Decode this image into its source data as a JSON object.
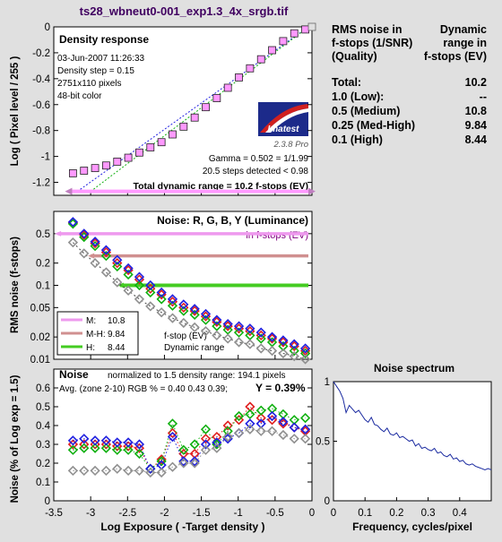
{
  "file_title": "ts28_wbneut0-001_exp1.3_4x_srgb.tif",
  "colors": {
    "background": "#e0e0e0",
    "plot_bg": "#ffffff",
    "title": "#400060",
    "density_marker": "#ff99ff",
    "red": "#e02020",
    "green": "#10b010",
    "blue": "#2020e0",
    "gray": "#909090",
    "range_m": "#ee99ee",
    "range_mh": "#d09090",
    "range_h": "#44cc22"
  },
  "summary": {
    "header_left": [
      "RMS noise in",
      "f-stops (1/SNR)",
      "(Quality)"
    ],
    "header_right": [
      "Dynamic",
      "range in",
      "f-stops (EV)"
    ],
    "rows": [
      {
        "label": "Total:",
        "value": "10.2"
      },
      {
        "label": "1.0   (Low):",
        "value": "--"
      },
      {
        "label": "0.5   (Medium)",
        "value": "10.8"
      },
      {
        "label": "0.25 (Med-High)",
        "value": "9.84"
      },
      {
        "label": "0.1   (High)",
        "value": "8.44"
      }
    ]
  },
  "chart_data": [
    {
      "type": "scatter",
      "title": "Density response",
      "ylabel": "Log ( Pixel level / 255 )",
      "xlim": [
        -3.5,
        0
      ],
      "ylim": [
        -1.3,
        0
      ],
      "yticks": [
        0,
        -0.2,
        -0.4,
        -0.6,
        -0.8,
        -1,
        -1.2
      ],
      "info": [
        "03-Jun-2007 11:26:33",
        "Density step = 0.15",
        "2751x110 pixels",
        "48-bit color"
      ],
      "logo": "Imatest",
      "version": "2.3.8  Pro",
      "gamma": "Gamma = 0.502 = 1/1.99",
      "steps": "20.5 steps detected < 0.98",
      "total_range": "Total dynamic range = 10.2 f-stops (EV)",
      "x": [
        -3.24,
        -3.09,
        -2.94,
        -2.79,
        -2.64,
        -2.49,
        -2.34,
        -2.19,
        -2.04,
        -1.89,
        -1.74,
        -1.59,
        -1.44,
        -1.29,
        -1.14,
        -0.99,
        -0.84,
        -0.69,
        -0.54,
        -0.39,
        -0.24,
        -0.09,
        0.0
      ],
      "y": [
        -1.13,
        -1.11,
        -1.09,
        -1.07,
        -1.04,
        -1.01,
        -0.97,
        -0.93,
        -0.89,
        -0.83,
        -0.77,
        -0.7,
        -0.62,
        -0.55,
        -0.47,
        -0.39,
        -0.32,
        -0.25,
        -0.18,
        -0.11,
        -0.05,
        -0.02,
        0.0
      ],
      "range_line": [
        -3.3,
        0
      ]
    },
    {
      "type": "scatter",
      "title": "Noise: R, G, B, Y (Luminance)",
      "subtitle": "in f-stops (EV)",
      "ylabel": "RMS noise (f-stops)",
      "yscale": "log",
      "ylim": [
        0.01,
        1
      ],
      "yticks": [
        "0.5",
        "0.2",
        "0.1",
        "0.05",
        "0.02",
        "0.01"
      ],
      "yticks_values": [
        0.5,
        0.2,
        0.1,
        0.05,
        0.02,
        0.01
      ],
      "xlim": [
        -3.5,
        0
      ],
      "ranges": [
        {
          "name": "M:",
          "value": "10.8",
          "level": 0.5,
          "x_start": -3.45
        },
        {
          "name": "M-H:",
          "value": "9.84",
          "level": 0.25,
          "x_start": -3.0
        },
        {
          "name": "H:",
          "value": "8.44",
          "level": 0.1,
          "x_start": -2.6
        }
      ],
      "annotation": [
        "f-stop (EV)",
        "Dynamic range"
      ],
      "x": [
        -3.24,
        -3.09,
        -2.94,
        -2.79,
        -2.64,
        -2.49,
        -2.34,
        -2.19,
        -2.04,
        -1.89,
        -1.74,
        -1.59,
        -1.44,
        -1.29,
        -1.14,
        -0.99,
        -0.84,
        -0.69,
        -0.54,
        -0.39,
        -0.24,
        -0.09
      ],
      "series": [
        {
          "name": "R",
          "values": [
            0.7,
            0.48,
            0.37,
            0.28,
            0.2,
            0.16,
            0.12,
            0.09,
            0.075,
            0.06,
            0.05,
            0.045,
            0.038,
            0.032,
            0.028,
            0.026,
            0.024,
            0.021,
            0.019,
            0.017,
            0.015,
            0.013
          ]
        },
        {
          "name": "G",
          "values": [
            0.68,
            0.45,
            0.34,
            0.25,
            0.18,
            0.14,
            0.1,
            0.08,
            0.065,
            0.053,
            0.045,
            0.04,
            0.034,
            0.028,
            0.025,
            0.023,
            0.021,
            0.019,
            0.017,
            0.015,
            0.013,
            0.012
          ]
        },
        {
          "name": "B",
          "values": [
            0.72,
            0.5,
            0.39,
            0.3,
            0.22,
            0.17,
            0.13,
            0.1,
            0.08,
            0.065,
            0.055,
            0.048,
            0.041,
            0.034,
            0.03,
            0.028,
            0.026,
            0.023,
            0.02,
            0.018,
            0.016,
            0.014
          ]
        },
        {
          "name": "Y",
          "values": [
            0.38,
            0.27,
            0.2,
            0.15,
            0.11,
            0.085,
            0.065,
            0.052,
            0.043,
            0.036,
            0.031,
            0.027,
            0.024,
            0.021,
            0.019,
            0.017,
            0.016,
            0.014,
            0.013,
            0.012,
            0.011,
            0.01
          ]
        }
      ]
    },
    {
      "type": "scatter",
      "title": "Noise",
      "norm_text": "normalized to 1.5 density range: 194.1 pixels",
      "avg_text": "Avg. (zone 2-10) RGB % = 0.40  0.43  0.39;",
      "y_text": "Y = 0.39%",
      "ylabel": "Noise (% of Log exp = 1.5)",
      "xlabel": "Log Exposure ( -Target density )",
      "xlim": [
        -3.5,
        0
      ],
      "ylim": [
        0,
        0.7
      ],
      "xticks": [
        "-3.5",
        "-3",
        "-2.5",
        "-2",
        "-1.5",
        "-1",
        "-0.5",
        "0"
      ],
      "xticks_values": [
        -3.5,
        -3,
        -2.5,
        -2,
        -1.5,
        -1,
        -0.5,
        0
      ],
      "yticks": [
        "0.6",
        "0.5",
        "0.4",
        "0.3",
        "0.2",
        "0.1",
        "0"
      ],
      "yticks_values": [
        0.6,
        0.5,
        0.4,
        0.3,
        0.2,
        0.1,
        0
      ],
      "x": [
        -3.24,
        -3.09,
        -2.94,
        -2.79,
        -2.64,
        -2.49,
        -2.34,
        -2.19,
        -2.04,
        -1.89,
        -1.74,
        -1.59,
        -1.44,
        -1.29,
        -1.14,
        -0.99,
        -0.84,
        -0.69,
        -0.54,
        -0.39,
        -0.24,
        -0.09
      ],
      "series": [
        {
          "name": "R",
          "values": [
            0.3,
            0.3,
            0.3,
            0.3,
            0.29,
            0.29,
            0.28,
            0.17,
            0.22,
            0.36,
            0.25,
            0.25,
            0.33,
            0.34,
            0.4,
            0.43,
            0.5,
            0.44,
            0.43,
            0.41,
            0.39,
            0.37
          ]
        },
        {
          "name": "G",
          "values": [
            0.27,
            0.28,
            0.28,
            0.28,
            0.27,
            0.27,
            0.25,
            0.17,
            0.21,
            0.41,
            0.27,
            0.3,
            0.38,
            0.3,
            0.37,
            0.45,
            0.46,
            0.48,
            0.49,
            0.46,
            0.43,
            0.44
          ]
        },
        {
          "name": "B",
          "values": [
            0.32,
            0.33,
            0.32,
            0.32,
            0.31,
            0.31,
            0.3,
            0.17,
            0.19,
            0.34,
            0.21,
            0.21,
            0.3,
            0.31,
            0.33,
            0.36,
            0.41,
            0.41,
            0.45,
            0.42,
            0.39,
            0.38
          ]
        },
        {
          "name": "Y",
          "values": [
            0.16,
            0.16,
            0.16,
            0.16,
            0.17,
            0.16,
            0.16,
            0.15,
            0.15,
            0.18,
            0.2,
            0.2,
            0.27,
            0.28,
            0.34,
            0.36,
            0.38,
            0.37,
            0.37,
            0.35,
            0.33,
            0.33
          ]
        }
      ]
    },
    {
      "type": "line",
      "title": "Noise spectrum",
      "xlabel": "Frequency, cycles/pixel",
      "xlim": [
        0,
        0.5
      ],
      "ylim": [
        0,
        1
      ],
      "xticks": [
        "0",
        "0.1",
        "0.2",
        "0.3",
        "0.4"
      ],
      "xticks_values": [
        0,
        0.1,
        0.2,
        0.3,
        0.4
      ],
      "yticks": [
        "1",
        "0.5",
        "0"
      ],
      "yticks_values": [
        1,
        0.5,
        0
      ],
      "x": [
        0,
        0.01,
        0.02,
        0.03,
        0.04,
        0.05,
        0.06,
        0.07,
        0.08,
        0.09,
        0.1,
        0.11,
        0.12,
        0.13,
        0.14,
        0.15,
        0.16,
        0.17,
        0.18,
        0.19,
        0.2,
        0.21,
        0.22,
        0.23,
        0.24,
        0.25,
        0.26,
        0.27,
        0.28,
        0.29,
        0.3,
        0.31,
        0.32,
        0.33,
        0.34,
        0.35,
        0.36,
        0.37,
        0.38,
        0.39,
        0.4,
        0.41,
        0.42,
        0.43,
        0.44,
        0.45,
        0.46,
        0.47,
        0.48,
        0.49,
        0.5
      ],
      "y": [
        1.0,
        0.96,
        0.92,
        0.86,
        0.74,
        0.8,
        0.77,
        0.74,
        0.76,
        0.72,
        0.68,
        0.66,
        0.7,
        0.64,
        0.63,
        0.6,
        0.58,
        0.61,
        0.56,
        0.55,
        0.57,
        0.53,
        0.54,
        0.52,
        0.5,
        0.51,
        0.46,
        0.48,
        0.44,
        0.45,
        0.43,
        0.42,
        0.44,
        0.4,
        0.41,
        0.38,
        0.37,
        0.39,
        0.35,
        0.36,
        0.33,
        0.34,
        0.31,
        0.3,
        0.31,
        0.29,
        0.28,
        0.27,
        0.26,
        0.27,
        0.26
      ]
    }
  ]
}
